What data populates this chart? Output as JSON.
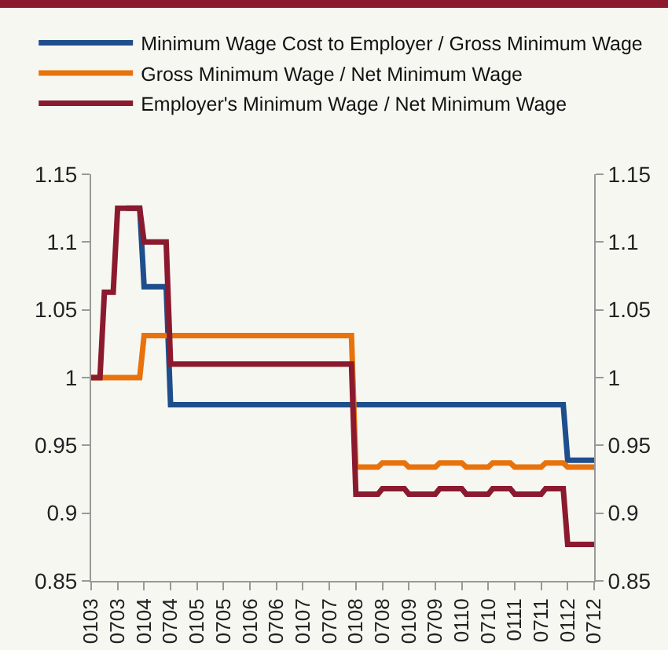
{
  "chart_data": {
    "type": "line",
    "legend": "top left",
    "grid": false,
    "marker": "none",
    "line_style": "solid",
    "categories": [
      "0103",
      null,
      null,
      null,
      null,
      null,
      "0703",
      null,
      null,
      null,
      null,
      null,
      "0104",
      null,
      null,
      null,
      null,
      null,
      "0704",
      null,
      null,
      null,
      null,
      null,
      "0105",
      null,
      null,
      null,
      null,
      null,
      "0705",
      null,
      null,
      null,
      null,
      null,
      "0106",
      null,
      null,
      null,
      null,
      null,
      "0706",
      null,
      null,
      null,
      null,
      null,
      "0107",
      null,
      null,
      null,
      null,
      null,
      "0707",
      null,
      null,
      null,
      null,
      null,
      "0108",
      null,
      null,
      null,
      null,
      null,
      "0708",
      null,
      null,
      null,
      null,
      null,
      "0109",
      null,
      null,
      null,
      null,
      null,
      "0709",
      null,
      null,
      null,
      null,
      null,
      "0110",
      null,
      null,
      null,
      null,
      null,
      "0710",
      null,
      null,
      null,
      null,
      null,
      "0111",
      null,
      null,
      null,
      null,
      null,
      "0711",
      null,
      null,
      null,
      null,
      null,
      "0112",
      null,
      null,
      null,
      null,
      null,
      "0712"
    ],
    "ylim": [
      0.85,
      1.15
    ],
    "yticks": [
      0.85,
      0.9,
      0.95,
      1,
      1.05,
      1.1,
      1.15
    ],
    "y2lim": [
      0.85,
      1.15
    ],
    "y2ticks": [
      0.85,
      0.9,
      0.95,
      1,
      1.05,
      1.1,
      1.15
    ],
    "series": [
      {
        "name": "Minimum Wage Cost to Employer / Gross Minimum Wage",
        "color": "#1f4e8c",
        "values": [
          null,
          null,
          null,
          null,
          null,
          null,
          null,
          null,
          1.125,
          1.125,
          1.125,
          1.125,
          1.067,
          1.067,
          1.067,
          1.067,
          1.067,
          1.067,
          0.98,
          0.98,
          0.98,
          0.98,
          0.98,
          0.98,
          0.98,
          0.98,
          0.98,
          0.98,
          0.98,
          0.98,
          0.98,
          0.98,
          0.98,
          0.98,
          0.98,
          0.98,
          0.98,
          0.98,
          0.98,
          0.98,
          0.98,
          0.98,
          0.98,
          0.98,
          0.98,
          0.98,
          0.98,
          0.98,
          0.98,
          0.98,
          0.98,
          0.98,
          0.98,
          0.98,
          0.98,
          0.98,
          0.98,
          0.98,
          0.98,
          0.98,
          0.98,
          0.98,
          0.98,
          0.98,
          0.98,
          0.98,
          0.98,
          0.98,
          0.98,
          0.98,
          0.98,
          0.98,
          0.98,
          0.98,
          0.98,
          0.98,
          0.98,
          0.98,
          0.98,
          0.98,
          0.98,
          0.98,
          0.98,
          0.98,
          0.98,
          0.98,
          0.98,
          0.98,
          0.98,
          0.98,
          0.98,
          0.98,
          0.98,
          0.98,
          0.98,
          0.98,
          0.98,
          0.98,
          0.98,
          0.98,
          0.98,
          0.98,
          0.98,
          0.98,
          0.98,
          0.98,
          0.98,
          0.98,
          0.939,
          0.939,
          0.939,
          0.939,
          0.939,
          0.939,
          0.939
        ]
      },
      {
        "name": "Gross Minimum Wage / Net Minimum Wage",
        "color": "#e8720c",
        "values": [
          1,
          1,
          1,
          1,
          1,
          1,
          1,
          1,
          1,
          1,
          1,
          1,
          1.031,
          1.031,
          1.031,
          1.031,
          1.031,
          1.031,
          1.031,
          1.031,
          1.031,
          1.031,
          1.031,
          1.031,
          1.031,
          1.031,
          1.031,
          1.031,
          1.031,
          1.031,
          1.031,
          1.031,
          1.031,
          1.031,
          1.031,
          1.031,
          1.031,
          1.031,
          1.031,
          1.031,
          1.031,
          1.031,
          1.031,
          1.031,
          1.031,
          1.031,
          1.031,
          1.031,
          1.031,
          1.031,
          1.031,
          1.031,
          1.031,
          1.031,
          1.031,
          1.031,
          1.031,
          1.031,
          1.031,
          1.031,
          0.934,
          0.934,
          0.934,
          0.934,
          0.934,
          0.934,
          0.937,
          0.937,
          0.937,
          0.937,
          0.937,
          0.937,
          0.934,
          0.934,
          0.934,
          0.934,
          0.934,
          0.934,
          0.934,
          0.937,
          0.937,
          0.937,
          0.937,
          0.937,
          0.937,
          0.934,
          0.934,
          0.934,
          0.934,
          0.934,
          0.934,
          0.937,
          0.937,
          0.937,
          0.937,
          0.937,
          0.934,
          0.934,
          0.934,
          0.934,
          0.934,
          0.934,
          0.934,
          0.937,
          0.937,
          0.937,
          0.937,
          0.937,
          0.934,
          0.934,
          0.934,
          0.934,
          0.934,
          0.934,
          0.934
        ]
      },
      {
        "name": "Employer's Minimum Wage / Net Minimum Wage",
        "color": "#8b1a2e",
        "values": [
          1,
          1,
          1,
          1.063,
          1.063,
          1.063,
          1.125,
          1.125,
          1.125,
          1.125,
          1.125,
          1.125,
          1.1,
          1.1,
          1.1,
          1.1,
          1.1,
          1.1,
          1.01,
          1.01,
          1.01,
          1.01,
          1.01,
          1.01,
          1.01,
          1.01,
          1.01,
          1.01,
          1.01,
          1.01,
          1.01,
          1.01,
          1.01,
          1.01,
          1.01,
          1.01,
          1.01,
          1.01,
          1.01,
          1.01,
          1.01,
          1.01,
          1.01,
          1.01,
          1.01,
          1.01,
          1.01,
          1.01,
          1.01,
          1.01,
          1.01,
          1.01,
          1.01,
          1.01,
          1.01,
          1.01,
          1.01,
          1.01,
          1.01,
          1.01,
          0.914,
          0.914,
          0.914,
          0.914,
          0.914,
          0.914,
          0.918,
          0.918,
          0.918,
          0.918,
          0.918,
          0.918,
          0.914,
          0.914,
          0.914,
          0.914,
          0.914,
          0.914,
          0.914,
          0.918,
          0.918,
          0.918,
          0.918,
          0.918,
          0.918,
          0.914,
          0.914,
          0.914,
          0.914,
          0.914,
          0.914,
          0.918,
          0.918,
          0.918,
          0.918,
          0.918,
          0.914,
          0.914,
          0.914,
          0.914,
          0.914,
          0.914,
          0.914,
          0.918,
          0.918,
          0.918,
          0.918,
          0.918,
          0.877,
          0.877,
          0.877,
          0.877,
          0.877,
          0.877,
          0.877
        ]
      }
    ]
  }
}
